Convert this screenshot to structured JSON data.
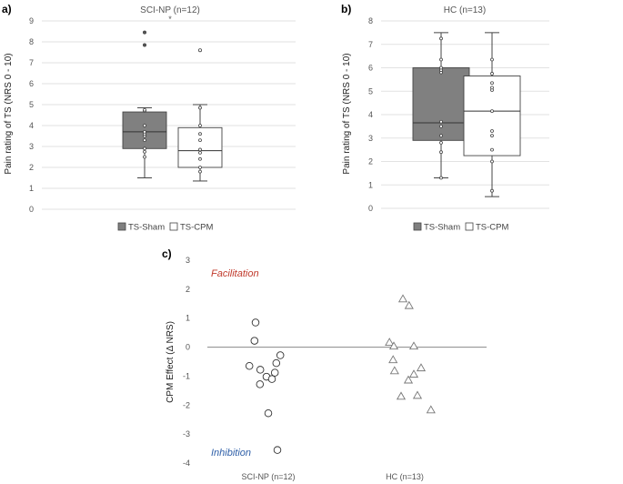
{
  "chart_data": [
    {
      "panel": "a)",
      "type": "boxplot",
      "title": "SCI-NP (n=12)",
      "ylabel": "Pain rating of TS  (NRS 0 - 10)",
      "ylim": [
        0,
        9
      ],
      "yticks": [
        0,
        1,
        2,
        3,
        4,
        5,
        6,
        7,
        8,
        9
      ],
      "grid": true,
      "significance": "*",
      "legend": [
        {
          "label": "TS-Sham",
          "color": "#808080"
        },
        {
          "label": "TS-CPM",
          "color": "#ffffff"
        }
      ],
      "series": [
        {
          "name": "TS-Sham",
          "min": 1.5,
          "q1": 2.9,
          "median": 3.7,
          "q3": 4.65,
          "max": 4.85,
          "points": [
            2.5,
            2.75,
            2.9,
            3.3,
            3.5,
            3.6,
            3.7,
            4.0,
            4.7,
            4.75
          ],
          "outliers": [
            7.85,
            8.45
          ]
        },
        {
          "name": "TS-CPM",
          "min": 1.35,
          "q1": 2.0,
          "median": 2.8,
          "q3": 3.9,
          "max": 5.0,
          "points": [
            1.8,
            2.0,
            2.4,
            2.7,
            2.85,
            3.3,
            3.6,
            4.0,
            4.85
          ],
          "outliers": [
            7.6
          ]
        }
      ]
    },
    {
      "panel": "b)",
      "type": "boxplot",
      "title": "HC (n=13)",
      "ylabel": "Pain rating of TS  (NRS 0 - 10)",
      "ylim": [
        0,
        8
      ],
      "yticks": [
        0,
        1,
        2,
        3,
        4,
        5,
        6,
        7,
        8
      ],
      "grid": true,
      "legend": [
        {
          "label": "TS-Sham",
          "color": "#808080"
        },
        {
          "label": "TS-CPM",
          "color": "#ffffff"
        }
      ],
      "series": [
        {
          "name": "TS-Sham",
          "min": 1.3,
          "q1": 2.9,
          "median": 3.65,
          "q3": 6.0,
          "max": 7.5,
          "points": [
            1.3,
            2.4,
            2.8,
            3.1,
            3.5,
            3.7,
            5.8,
            5.9,
            6.0,
            6.35,
            7.25
          ],
          "outliers": []
        },
        {
          "name": "TS-CPM",
          "min": 0.5,
          "q1": 2.25,
          "median": 4.15,
          "q3": 5.65,
          "max": 7.5,
          "points": [
            0.75,
            2.0,
            2.5,
            3.1,
            3.3,
            4.15,
            5.05,
            5.15,
            5.35,
            5.75,
            6.35
          ],
          "outliers": []
        }
      ]
    },
    {
      "panel": "c)",
      "type": "scatter",
      "ylabel": "CPM Effect (Δ NRS)",
      "ylim": [
        -4,
        3
      ],
      "yticks": [
        -4,
        -3,
        -2,
        -1,
        0,
        1,
        2,
        3
      ],
      "categories": [
        "SCI-NP (n=12)",
        "HC (n=13)"
      ],
      "annotations": {
        "top": "Facilitation",
        "bottom": "Inhibition"
      },
      "series": [
        {
          "name": "SCI-NP (n=12)",
          "marker": "circle",
          "points": [
            {
              "x": -0.52,
              "y": -0.65
            },
            {
              "x": -0.35,
              "y": 0.85
            },
            {
              "x": -0.38,
              "y": 0.22
            },
            {
              "x": -0.22,
              "y": -0.78
            },
            {
              "x": -0.23,
              "y": -1.28
            },
            {
              "x": -0.05,
              "y": -1.02
            },
            {
              "x": 0.1,
              "y": -1.1
            },
            {
              "x": 0.18,
              "y": -0.88
            },
            {
              "x": 0.22,
              "y": -0.55
            },
            {
              "x": 0.33,
              "y": -0.28
            },
            {
              "x": 0.0,
              "y": -2.28
            },
            {
              "x": 0.25,
              "y": -3.55
            }
          ]
        },
        {
          "name": "HC (n=13)",
          "marker": "triangle",
          "points": [
            {
              "x": -0.42,
              "y": 0.18
            },
            {
              "x": -0.3,
              "y": 0.05
            },
            {
              "x": -0.32,
              "y": -0.42
            },
            {
              "x": -0.28,
              "y": -0.8
            },
            {
              "x": -0.05,
              "y": 1.68
            },
            {
              "x": 0.12,
              "y": 1.45
            },
            {
              "x": -0.1,
              "y": -1.68
            },
            {
              "x": 0.1,
              "y": -1.12
            },
            {
              "x": 0.25,
              "y": -0.92
            },
            {
              "x": 0.25,
              "y": 0.05
            },
            {
              "x": 0.35,
              "y": -1.65
            },
            {
              "x": 0.45,
              "y": -0.7
            },
            {
              "x": 0.72,
              "y": -2.15
            }
          ]
        }
      ]
    }
  ]
}
